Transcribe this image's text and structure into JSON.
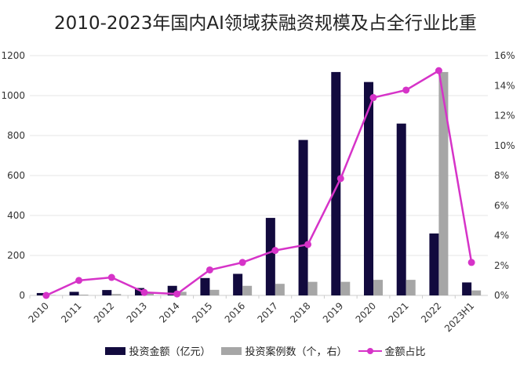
{
  "chart_data": {
    "type": "bar",
    "title": "2010-2023年国内AI领域获融资规模及占全行业比重",
    "categories": [
      "2010",
      "2011",
      "2012",
      "2013",
      "2014",
      "2015",
      "2016",
      "2017",
      "2018",
      "2019",
      "2020",
      "2021",
      "2022",
      "2023H1"
    ],
    "series": [
      {
        "name": "投资金额（亿元）",
        "type": "bar",
        "axis": "left",
        "color": "#120a3e",
        "values": [
          12,
          18,
          27,
          37,
          48,
          87,
          108,
          388,
          778,
          1118,
          1068,
          860,
          310,
          65
        ]
      },
      {
        "name": "投资案例数（个，右）",
        "type": "bar",
        "axis": "left-scaled",
        "color": "#a6a6a6",
        "values": [
          2,
          4,
          7,
          10,
          18,
          28,
          48,
          58,
          68,
          68,
          78,
          78,
          1118,
          25
        ]
      },
      {
        "name": "金额占比",
        "type": "line",
        "axis": "right",
        "unit": "%",
        "color": "#d633c8",
        "values": [
          0,
          1.0,
          1.2,
          0.2,
          0.1,
          1.7,
          2.2,
          3.0,
          3.4,
          7.8,
          13.2,
          13.7,
          15.0,
          2.2
        ]
      }
    ],
    "ylim": [
      0,
      1200
    ],
    "yticks": [
      "0",
      "200",
      "400",
      "600",
      "800",
      "1000",
      "1200"
    ],
    "y2lim": [
      0,
      16
    ],
    "y2ticks": [
      "0%",
      "2%",
      "4%",
      "6%",
      "8%",
      "10%",
      "12%",
      "14%",
      "16%"
    ],
    "grid": true,
    "legend": "bottom"
  }
}
